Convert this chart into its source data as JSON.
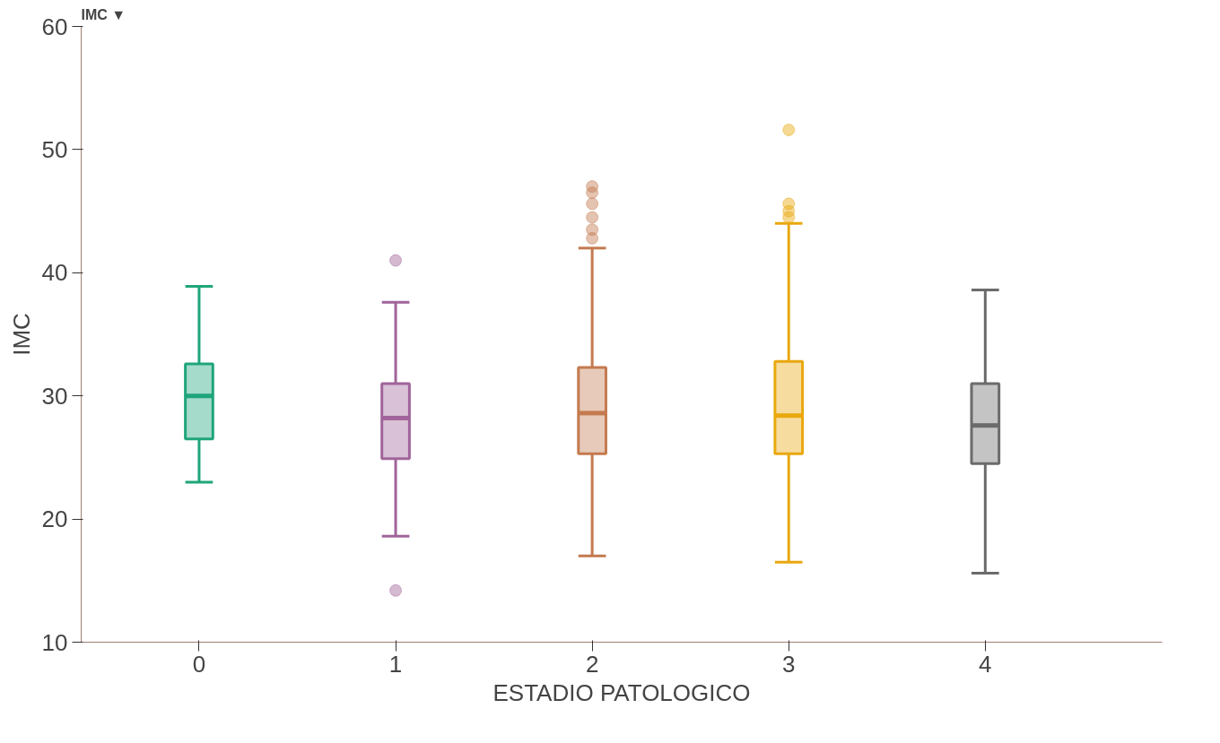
{
  "chart_data": {
    "type": "box",
    "title": "IMC ▼",
    "xlabel": "ESTADIO PATOLOGICO",
    "ylabel": "IMC",
    "categories": [
      "0",
      "1",
      "2",
      "3",
      "4"
    ],
    "colors": [
      "#1fa57b",
      "#a0649a",
      "#c47a4f",
      "#e9a80e",
      "#6b6b6b"
    ],
    "boxes": [
      {
        "low": 23.0,
        "q1": 26.5,
        "median": 30.0,
        "q3": 32.6,
        "high": 38.9
      },
      {
        "low": 18.6,
        "q1": 24.9,
        "median": 28.2,
        "q3": 31.0,
        "high": 37.6,
        "outliers": [
          41.0,
          14.2
        ]
      },
      {
        "low": 17.0,
        "q1": 25.3,
        "median": 28.6,
        "q3": 32.3,
        "high": 42.0,
        "outliers": [
          47.0,
          46.5,
          45.6,
          44.5,
          43.5,
          42.8
        ]
      },
      {
        "low": 16.5,
        "q1": 25.3,
        "median": 28.4,
        "q3": 32.8,
        "high": 44.0,
        "outliers": [
          51.6,
          45.6,
          45.0,
          44.5
        ]
      },
      {
        "low": 15.6,
        "q1": 24.5,
        "median": 27.6,
        "q3": 31.0,
        "high": 38.6
      }
    ],
    "ylim": [
      10,
      60
    ],
    "yticks": [
      10,
      20,
      30,
      40,
      50,
      60
    ],
    "grid": false
  }
}
